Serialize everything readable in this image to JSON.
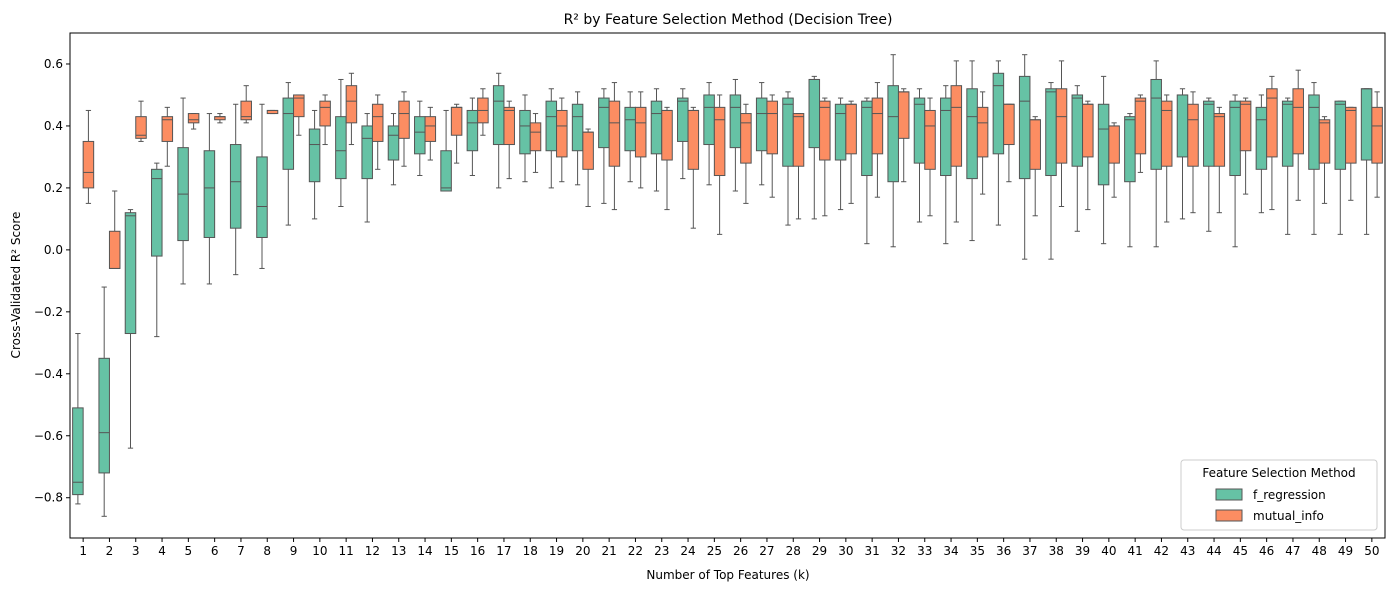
{
  "chart_data": {
    "type": "box",
    "title": "R² by Feature Selection Method (Decision Tree)",
    "xlabel": "Number of Top Features (k)",
    "ylabel": "Cross-Validated R² Score",
    "ylim": [
      -0.93,
      0.7
    ],
    "yticks": [
      -0.8,
      -0.6,
      -0.4,
      -0.2,
      0.0,
      0.2,
      0.4,
      0.6
    ],
    "ytick_labels": [
      "−0.8",
      "−0.6",
      "−0.4",
      "−0.2",
      "0.0",
      "0.2",
      "0.4",
      "0.6"
    ],
    "grid": false,
    "legend": {
      "title": "Feature Selection Method",
      "placement": "bottom-right"
    },
    "categories": [
      "1",
      "2",
      "3",
      "4",
      "5",
      "6",
      "7",
      "8",
      "9",
      "10",
      "11",
      "12",
      "13",
      "14",
      "15",
      "16",
      "17",
      "18",
      "19",
      "20",
      "21",
      "22",
      "23",
      "24",
      "25",
      "26",
      "27",
      "28",
      "29",
      "30",
      "31",
      "32",
      "33",
      "34",
      "35",
      "36",
      "37",
      "38",
      "39",
      "40",
      "41",
      "42",
      "43",
      "44",
      "45",
      "46",
      "47",
      "48",
      "49",
      "50"
    ],
    "series": [
      {
        "name": "f_regression",
        "color": "#66c2a5",
        "boxes": [
          [
            -0.82,
            -0.79,
            -0.75,
            -0.51,
            -0.27
          ],
          [
            -0.86,
            -0.72,
            -0.59,
            -0.35,
            -0.12
          ],
          [
            -0.64,
            -0.27,
            0.11,
            0.12,
            0.13
          ],
          [
            -0.28,
            -0.02,
            0.23,
            0.26,
            0.28
          ],
          [
            -0.11,
            0.03,
            0.18,
            0.33,
            0.49
          ],
          [
            -0.11,
            0.04,
            0.2,
            0.32,
            0.44
          ],
          [
            -0.08,
            0.07,
            0.22,
            0.34,
            0.47
          ],
          [
            -0.06,
            0.04,
            0.14,
            0.3,
            0.47
          ],
          [
            0.08,
            0.26,
            0.44,
            0.49,
            0.54
          ],
          [
            0.1,
            0.22,
            0.34,
            0.39,
            0.45
          ],
          [
            0.14,
            0.23,
            0.32,
            0.43,
            0.55
          ],
          [
            0.09,
            0.23,
            0.36,
            0.4,
            0.44
          ],
          [
            0.21,
            0.29,
            0.37,
            0.4,
            0.44
          ],
          [
            0.24,
            0.31,
            0.38,
            0.43,
            0.48
          ],
          [
            0.19,
            0.19,
            0.2,
            0.32,
            0.45
          ],
          [
            0.24,
            0.32,
            0.41,
            0.45,
            0.49
          ],
          [
            0.2,
            0.34,
            0.48,
            0.53,
            0.57
          ],
          [
            0.22,
            0.31,
            0.4,
            0.45,
            0.5
          ],
          [
            0.2,
            0.32,
            0.43,
            0.48,
            0.52
          ],
          [
            0.21,
            0.32,
            0.43,
            0.47,
            0.51
          ],
          [
            0.15,
            0.33,
            0.46,
            0.49,
            0.52
          ],
          [
            0.22,
            0.32,
            0.42,
            0.46,
            0.51
          ],
          [
            0.19,
            0.31,
            0.44,
            0.48,
            0.52
          ],
          [
            0.23,
            0.35,
            0.48,
            0.49,
            0.52
          ],
          [
            0.21,
            0.34,
            0.46,
            0.5,
            0.54
          ],
          [
            0.19,
            0.33,
            0.46,
            0.5,
            0.55
          ],
          [
            0.21,
            0.32,
            0.44,
            0.49,
            0.54
          ],
          [
            0.08,
            0.27,
            0.47,
            0.49,
            0.51
          ],
          [
            0.1,
            0.33,
            0.55,
            0.55,
            0.56
          ],
          [
            0.13,
            0.29,
            0.44,
            0.47,
            0.49
          ],
          [
            0.02,
            0.24,
            0.46,
            0.48,
            0.49
          ],
          [
            0.01,
            0.22,
            0.43,
            0.53,
            0.63
          ],
          [
            0.09,
            0.28,
            0.47,
            0.49,
            0.52
          ],
          [
            0.02,
            0.24,
            0.45,
            0.49,
            0.53
          ],
          [
            0.03,
            0.23,
            0.43,
            0.52,
            0.61
          ],
          [
            0.08,
            0.31,
            0.53,
            0.57,
            0.61
          ],
          [
            -0.03,
            0.23,
            0.48,
            0.56,
            0.63
          ],
          [
            -0.03,
            0.24,
            0.51,
            0.52,
            0.54
          ],
          [
            0.06,
            0.27,
            0.49,
            0.5,
            0.53
          ],
          [
            0.02,
            0.21,
            0.39,
            0.47,
            0.56
          ],
          [
            0.01,
            0.22,
            0.42,
            0.43,
            0.44
          ],
          [
            0.01,
            0.26,
            0.49,
            0.55,
            0.61
          ],
          [
            0.1,
            0.3,
            0.5,
            0.5,
            0.52
          ],
          [
            0.06,
            0.27,
            0.47,
            0.48,
            0.49
          ],
          [
            0.01,
            0.24,
            0.46,
            0.48,
            0.5
          ],
          [
            0.12,
            0.26,
            0.42,
            0.46,
            0.5
          ],
          [
            0.05,
            0.27,
            0.47,
            0.48,
            0.49
          ],
          [
            0.05,
            0.26,
            0.46,
            0.5,
            0.54
          ],
          [
            0.05,
            0.26,
            0.47,
            0.48,
            0.48
          ],
          [
            0.05,
            0.29,
            0.52,
            0.52,
            0.52
          ]
        ]
      },
      {
        "name": "mutual_info",
        "color": "#fc8d62",
        "boxes": [
          [
            0.15,
            0.2,
            0.25,
            0.35,
            0.45
          ],
          [
            -0.06,
            -0.06,
            -0.06,
            0.06,
            0.19
          ],
          [
            0.35,
            0.36,
            0.37,
            0.43,
            0.48
          ],
          [
            0.27,
            0.35,
            0.42,
            0.43,
            0.46
          ],
          [
            0.39,
            0.41,
            0.42,
            0.44,
            0.44
          ],
          [
            0.41,
            0.42,
            0.43,
            0.43,
            0.44
          ],
          [
            0.41,
            0.42,
            0.43,
            0.48,
            0.53
          ],
          [
            0.44,
            0.44,
            0.45,
            0.45,
            0.45
          ],
          [
            0.37,
            0.43,
            0.49,
            0.5,
            0.5
          ],
          [
            0.34,
            0.4,
            0.46,
            0.48,
            0.5
          ],
          [
            0.34,
            0.41,
            0.48,
            0.53,
            0.57
          ],
          [
            0.26,
            0.35,
            0.43,
            0.47,
            0.5
          ],
          [
            0.27,
            0.36,
            0.44,
            0.48,
            0.51
          ],
          [
            0.29,
            0.35,
            0.4,
            0.43,
            0.46
          ],
          [
            0.28,
            0.37,
            0.46,
            0.46,
            0.47
          ],
          [
            0.37,
            0.41,
            0.45,
            0.49,
            0.52
          ],
          [
            0.23,
            0.34,
            0.45,
            0.46,
            0.48
          ],
          [
            0.25,
            0.32,
            0.38,
            0.41,
            0.44
          ],
          [
            0.22,
            0.3,
            0.4,
            0.45,
            0.49
          ],
          [
            0.14,
            0.26,
            0.38,
            0.38,
            0.39
          ],
          [
            0.13,
            0.27,
            0.41,
            0.48,
            0.54
          ],
          [
            0.2,
            0.3,
            0.41,
            0.46,
            0.51
          ],
          [
            0.13,
            0.29,
            0.45,
            0.45,
            0.46
          ],
          [
            0.07,
            0.26,
            0.45,
            0.45,
            0.46
          ],
          [
            0.05,
            0.24,
            0.42,
            0.46,
            0.5
          ],
          [
            0.15,
            0.28,
            0.41,
            0.44,
            0.47
          ],
          [
            0.17,
            0.31,
            0.44,
            0.48,
            0.5
          ],
          [
            0.1,
            0.27,
            0.43,
            0.44,
            0.44
          ],
          [
            0.11,
            0.29,
            0.46,
            0.48,
            0.49
          ],
          [
            0.15,
            0.31,
            0.47,
            0.47,
            0.48
          ],
          [
            0.17,
            0.31,
            0.44,
            0.49,
            0.54
          ],
          [
            0.22,
            0.36,
            0.51,
            0.51,
            0.52
          ],
          [
            0.11,
            0.26,
            0.4,
            0.45,
            0.49
          ],
          [
            0.09,
            0.27,
            0.46,
            0.53,
            0.61
          ],
          [
            0.18,
            0.3,
            0.41,
            0.46,
            0.51
          ],
          [
            0.22,
            0.34,
            0.47,
            0.47,
            0.47
          ],
          [
            0.11,
            0.26,
            0.42,
            0.42,
            0.43
          ],
          [
            0.14,
            0.28,
            0.43,
            0.52,
            0.61
          ],
          [
            0.13,
            0.3,
            0.47,
            0.47,
            0.48
          ],
          [
            0.17,
            0.28,
            0.4,
            0.4,
            0.41
          ],
          [
            0.25,
            0.31,
            0.48,
            0.49,
            0.5
          ],
          [
            0.09,
            0.27,
            0.45,
            0.48,
            0.5
          ],
          [
            0.12,
            0.27,
            0.42,
            0.47,
            0.51
          ],
          [
            0.12,
            0.27,
            0.43,
            0.44,
            0.46
          ],
          [
            0.18,
            0.32,
            0.47,
            0.48,
            0.49
          ],
          [
            0.13,
            0.3,
            0.49,
            0.52,
            0.56
          ],
          [
            0.16,
            0.31,
            0.46,
            0.52,
            0.58
          ],
          [
            0.15,
            0.28,
            0.41,
            0.42,
            0.43
          ],
          [
            0.16,
            0.28,
            0.45,
            0.46,
            0.46
          ],
          [
            0.17,
            0.28,
            0.4,
            0.46,
            0.51
          ]
        ]
      }
    ]
  }
}
